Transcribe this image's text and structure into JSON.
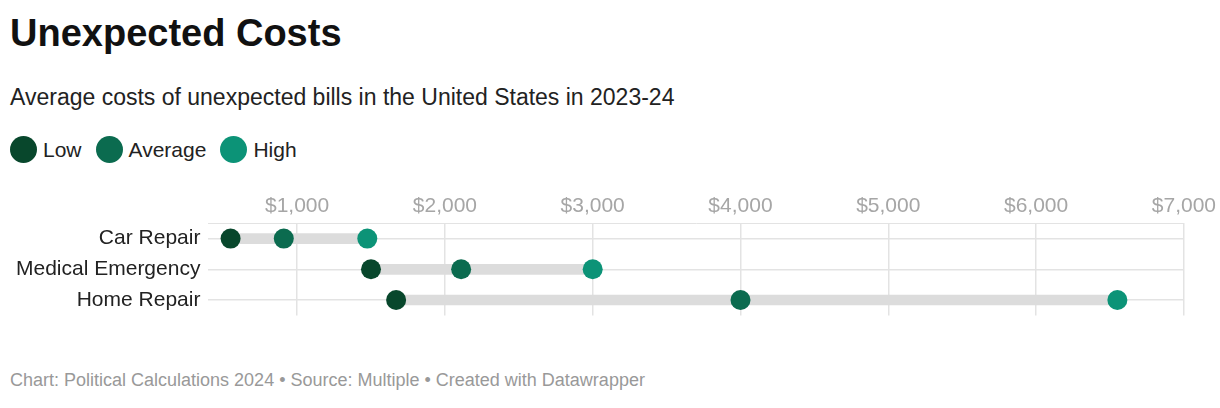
{
  "chart_data": {
    "type": "dumbbell",
    "title": "Unexpected Costs",
    "subtitle": "Average costs of unexpected bills in the United States in 2023-24",
    "caption": "Chart: Political Calculations 2024 • Source: Multiple • Created with Datawrapper",
    "orientation": "horizontal",
    "categories": [
      "Car Repair",
      "Medical Emergency",
      "Home Repair"
    ],
    "series": [
      {
        "name": "Low",
        "color": "#08472c",
        "values": [
          550,
          1500,
          1670
        ]
      },
      {
        "name": "Average",
        "color": "#0b6b4f",
        "values": [
          910,
          2110,
          4000
        ]
      },
      {
        "name": "High",
        "color": "#0c9377",
        "values": [
          1475,
          3000,
          6550
        ]
      }
    ],
    "xlim": [
      400,
      7000
    ],
    "xticks": [
      {
        "value": 1000,
        "label": "$1,000"
      },
      {
        "value": 2000,
        "label": "$2,000"
      },
      {
        "value": 3000,
        "label": "$3,000"
      },
      {
        "value": 4000,
        "label": "$4,000"
      },
      {
        "value": 5000,
        "label": "$5,000"
      },
      {
        "value": 6000,
        "label": "$6,000"
      },
      {
        "value": 7000,
        "label": "$7,000"
      }
    ],
    "grid": true,
    "legend": "top-left"
  }
}
